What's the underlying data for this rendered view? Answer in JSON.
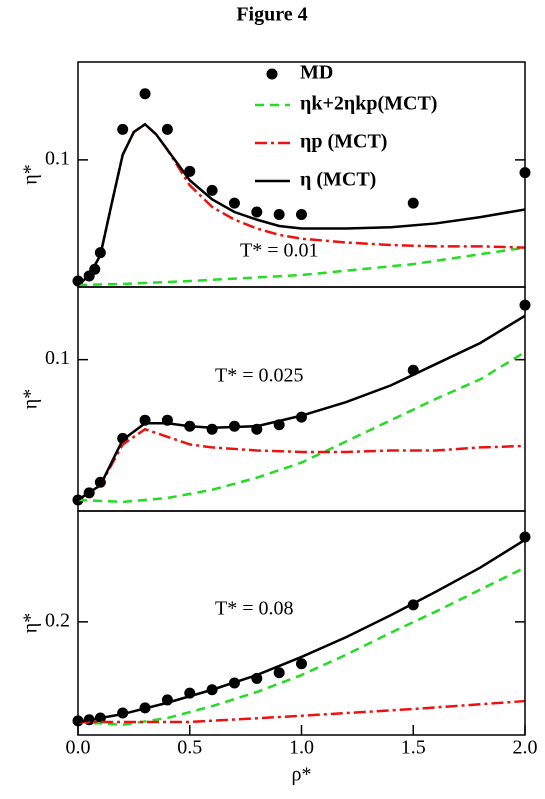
{
  "title": "Figure 4",
  "chart_data": [
    {
      "type": "line",
      "ylabel": "η*",
      "annotation": "T* = 0.01",
      "xlim": [
        0,
        2
      ],
      "ylim": [
        0,
        0.177
      ],
      "yticks": [
        0.1
      ],
      "series": [
        {
          "name": "MD",
          "color": "#000000",
          "marker": "circle",
          "x": [
            0,
            0.05,
            0.075,
            0.1,
            0.2,
            0.3,
            0.4,
            0.5,
            0.6,
            0.7,
            0.8,
            0.9,
            1.0,
            1.5,
            2.0
          ],
          "values": [
            0.0047,
            0.0087,
            0.014,
            0.027,
            0.124,
            0.152,
            0.124,
            0.091,
            0.076,
            0.066,
            0.059,
            0.057,
            0.057,
            0.066,
            0.09
          ]
        },
        {
          "name": "ηk+2ηkp(MCT)",
          "color": "#22dd22",
          "linestyle": "dashed",
          "x": [
            0,
            0.2,
            0.5,
            1.0,
            1.5,
            2.0
          ],
          "values": [
            0.0016,
            0.0024,
            0.0047,
            0.0094,
            0.018,
            0.031
          ]
        },
        {
          "name": "ηp (MCT)",
          "color": "#ee1111",
          "linestyle": "dashdot",
          "x": [
            0,
            0.05,
            0.1,
            0.15,
            0.2,
            0.25,
            0.3,
            0.35,
            0.4,
            0.5,
            0.6,
            0.7,
            0.8,
            0.9,
            1.0,
            1.2,
            1.4,
            1.6,
            1.8,
            2.0
          ],
          "values": [
            0.0016,
            0.009,
            0.025,
            0.065,
            0.104,
            0.122,
            0.128,
            0.12,
            0.108,
            0.08,
            0.063,
            0.053,
            0.046,
            0.041,
            0.038,
            0.035,
            0.033,
            0.032,
            0.032,
            0.031
          ]
        },
        {
          "name": "η (MCT)",
          "color": "#000000",
          "linestyle": "solid",
          "x": [
            0,
            0.05,
            0.1,
            0.15,
            0.2,
            0.25,
            0.3,
            0.35,
            0.4,
            0.5,
            0.6,
            0.7,
            0.8,
            0.9,
            1.0,
            1.2,
            1.4,
            1.6,
            1.8,
            2.0
          ],
          "values": [
            0.0016,
            0.009,
            0.025,
            0.065,
            0.104,
            0.122,
            0.128,
            0.12,
            0.108,
            0.084,
            0.069,
            0.059,
            0.053,
            0.048,
            0.046,
            0.046,
            0.047,
            0.05,
            0.055,
            0.061
          ]
        }
      ]
    },
    {
      "type": "line",
      "ylabel": "η*",
      "annotation": "T* = 0.025",
      "xlim": [
        0,
        2
      ],
      "ylim": [
        0,
        0.148
      ],
      "yticks": [
        0.1
      ],
      "series": [
        {
          "color": "#000000",
          "marker": "circle",
          "x": [
            0,
            0.05,
            0.1,
            0.2,
            0.3,
            0.4,
            0.5,
            0.6,
            0.7,
            0.8,
            0.9,
            1.0,
            1.5,
            2.0
          ],
          "values": [
            0.0073,
            0.012,
            0.019,
            0.048,
            0.06,
            0.06,
            0.056,
            0.054,
            0.056,
            0.054,
            0.057,
            0.062,
            0.093,
            0.136
          ]
        },
        {
          "color": "#22dd22",
          "linestyle": "dashed",
          "x": [
            0,
            0.2,
            0.4,
            0.6,
            0.8,
            1.0,
            1.2,
            1.4,
            1.6,
            1.8,
            2.0
          ],
          "values": [
            0.0073,
            0.006,
            0.0086,
            0.014,
            0.022,
            0.032,
            0.046,
            0.06,
            0.074,
            0.087,
            0.105
          ]
        },
        {
          "color": "#ee1111",
          "linestyle": "dashdot",
          "x": [
            0,
            0.1,
            0.2,
            0.3,
            0.4,
            0.5,
            0.6,
            0.8,
            1.0,
            1.2,
            1.4,
            1.6,
            1.8,
            2.0
          ],
          "values": [
            0.0073,
            0.017,
            0.044,
            0.054,
            0.049,
            0.044,
            0.042,
            0.04,
            0.039,
            0.039,
            0.04,
            0.04,
            0.042,
            0.043
          ]
        },
        {
          "color": "#000000",
          "linestyle": "solid",
          "x": [
            0,
            0.1,
            0.2,
            0.3,
            0.4,
            0.5,
            0.6,
            0.8,
            1.0,
            1.2,
            1.4,
            1.6,
            1.8,
            2.0
          ],
          "values": [
            0.0073,
            0.017,
            0.047,
            0.058,
            0.058,
            0.056,
            0.055,
            0.056,
            0.063,
            0.072,
            0.083,
            0.097,
            0.111,
            0.129
          ]
        }
      ]
    },
    {
      "type": "line",
      "ylabel": "η*",
      "xlabel": "ρ*",
      "annotation": "T* = 0.08",
      "xlim": [
        0,
        2
      ],
      "ylim": [
        0,
        0.396
      ],
      "yticks": [
        0.2
      ],
      "xticks": [
        {
          "value": 0,
          "label": "0.0"
        },
        0.5,
        {
          "value": 1,
          "label": "1.0"
        },
        1.5,
        {
          "value": 2,
          "label": "2.0"
        }
      ],
      "series": [
        {
          "color": "#000000",
          "marker": "circle",
          "x": [
            0,
            0.05,
            0.1,
            0.2,
            0.3,
            0.4,
            0.5,
            0.6,
            0.7,
            0.8,
            0.9,
            1.0,
            1.5,
            2.0
          ],
          "values": [
            0.025,
            0.027,
            0.03,
            0.039,
            0.048,
            0.062,
            0.074,
            0.08,
            0.092,
            0.1,
            0.11,
            0.126,
            0.23,
            0.35
          ]
        },
        {
          "color": "#22dd22",
          "linestyle": "dashed",
          "x": [
            0,
            0.2,
            0.4,
            0.6,
            0.8,
            1.0,
            1.2,
            1.4,
            1.6,
            1.8,
            2.0
          ],
          "values": [
            0.023,
            0.018,
            0.03,
            0.051,
            0.076,
            0.106,
            0.142,
            0.181,
            0.218,
            0.257,
            0.296
          ]
        },
        {
          "color": "#ee1111",
          "linestyle": "dashdot",
          "x": [
            0,
            0.5,
            1.0,
            1.5,
            2.0
          ],
          "values": [
            0.023,
            0.023,
            0.034,
            0.046,
            0.06
          ]
        },
        {
          "color": "#000000",
          "linestyle": "solid",
          "x": [
            0,
            0.2,
            0.4,
            0.6,
            0.8,
            1.0,
            1.2,
            1.4,
            1.6,
            1.8,
            2.0
          ],
          "values": [
            0.023,
            0.037,
            0.057,
            0.08,
            0.106,
            0.138,
            0.173,
            0.212,
            0.253,
            0.296,
            0.345
          ]
        }
      ]
    }
  ]
}
